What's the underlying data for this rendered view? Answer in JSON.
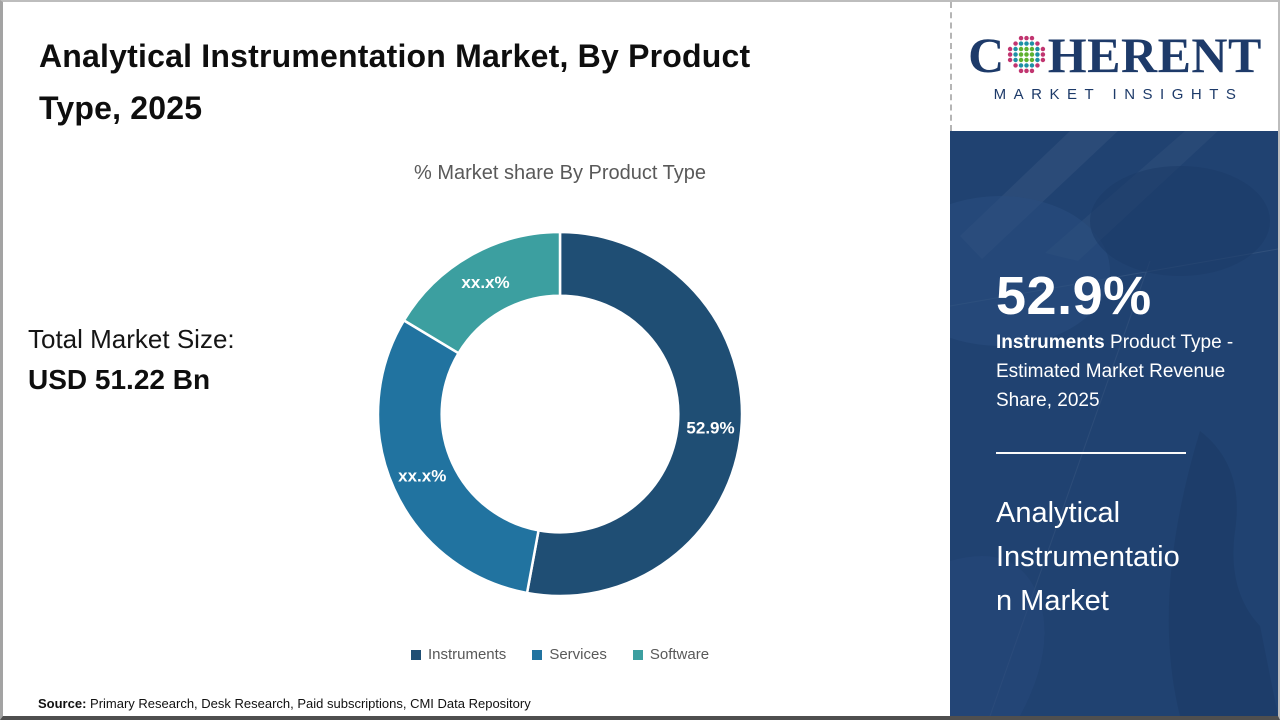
{
  "header": {
    "title": "Analytical Instrumentation Market, By Product\nType, 2025"
  },
  "logo": {
    "brand_left": "C",
    "brand_right": "HERENT",
    "tagline": "MARKET INSIGHTS",
    "brand_color": "#1d3a69",
    "globe_colors": {
      "inner": "#5eb130",
      "middle": "#1d90a5",
      "outer": "#c13570"
    }
  },
  "total_market": {
    "label": "Total Market Size:",
    "value": "USD 51.22 Bn"
  },
  "chart_data": {
    "type": "pie",
    "subtype": "donut",
    "title": "% Market share By Product Type",
    "donut_hole_ratio": 0.65,
    "start_angle_deg": 0,
    "direction": "clockwise",
    "legend_position": "bottom",
    "slices": [
      {
        "name": "Instruments",
        "value": 52.9,
        "label": "52.9%",
        "color": "#1f4e74"
      },
      {
        "name": "Services",
        "value": 30.7,
        "label": "xx.x%",
        "color": "#2173a0"
      },
      {
        "name": "Software",
        "value": 16.4,
        "label": "xx.x%",
        "color": "#3c9fa0"
      }
    ]
  },
  "sidebar": {
    "background_color": "#204271",
    "stat_value": "52.9%",
    "stat_desc_bold": "Instruments",
    "stat_desc_rest": " Product Type - Estimated Market Revenue Share, 2025",
    "market_name": "Analytical\nInstrumentatio\nn Market"
  },
  "source": {
    "label": "Source:",
    "text": " Primary Research, Desk Research, Paid subscriptions, CMI Data Repository"
  }
}
